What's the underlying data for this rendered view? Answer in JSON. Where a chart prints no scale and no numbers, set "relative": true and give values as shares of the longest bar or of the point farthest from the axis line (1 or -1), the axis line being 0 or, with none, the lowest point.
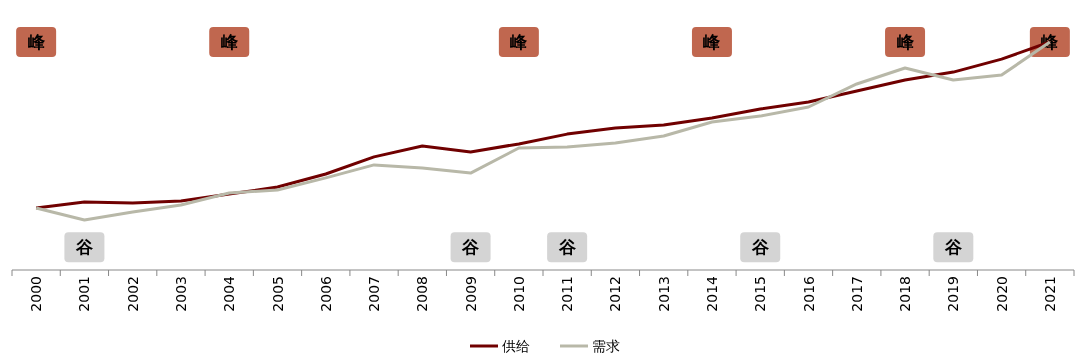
{
  "chart_data": {
    "type": "line",
    "relative": true,
    "legend": "bottom",
    "categories": [
      "2000",
      "2001",
      "2002",
      "2003",
      "2004",
      "2005",
      "2006",
      "2007",
      "2008",
      "2009",
      "2010",
      "2011",
      "2012",
      "2013",
      "2014",
      "2015",
      "2016",
      "2017",
      "2018",
      "2019",
      "2020",
      "2021"
    ],
    "series": [
      {
        "name": "供给",
        "color": "#700000",
        "values": [
          0.272,
          0.298,
          0.294,
          0.303,
          0.333,
          0.364,
          0.421,
          0.496,
          0.544,
          0.518,
          0.553,
          0.596,
          0.623,
          0.636,
          0.667,
          0.706,
          0.737,
          0.785,
          0.833,
          0.868,
          0.925,
          1
        ]
      },
      {
        "name": "需求",
        "color": "#b8b8a8",
        "values": [
          0.272,
          0.219,
          0.254,
          0.285,
          0.338,
          0.351,
          0.404,
          0.461,
          0.447,
          0.425,
          0.535,
          0.539,
          0.557,
          0.588,
          0.649,
          0.675,
          0.715,
          0.816,
          0.886,
          0.833,
          0.855,
          1
        ]
      }
    ],
    "annotations": [
      {
        "text": "峰",
        "x": "2000",
        "y": 1
      },
      {
        "text": "峰",
        "x": "2004",
        "y": 1
      },
      {
        "text": "峰",
        "x": "2010",
        "y": 1
      },
      {
        "text": "峰",
        "x": "2014",
        "y": 1
      },
      {
        "text": "峰",
        "x": "2018",
        "y": 1
      },
      {
        "text": "峰",
        "x": "2021",
        "y": 1
      },
      {
        "text": "谷",
        "x": "2001",
        "y": 0.1
      },
      {
        "text": "谷",
        "x": "2009",
        "y": 0.1
      },
      {
        "text": "谷",
        "x": "2011",
        "y": 0.1
      },
      {
        "text": "谷",
        "x": "2015",
        "y": 0.1
      },
      {
        "text": "谷",
        "x": "2019",
        "y": 0.1
      }
    ]
  }
}
